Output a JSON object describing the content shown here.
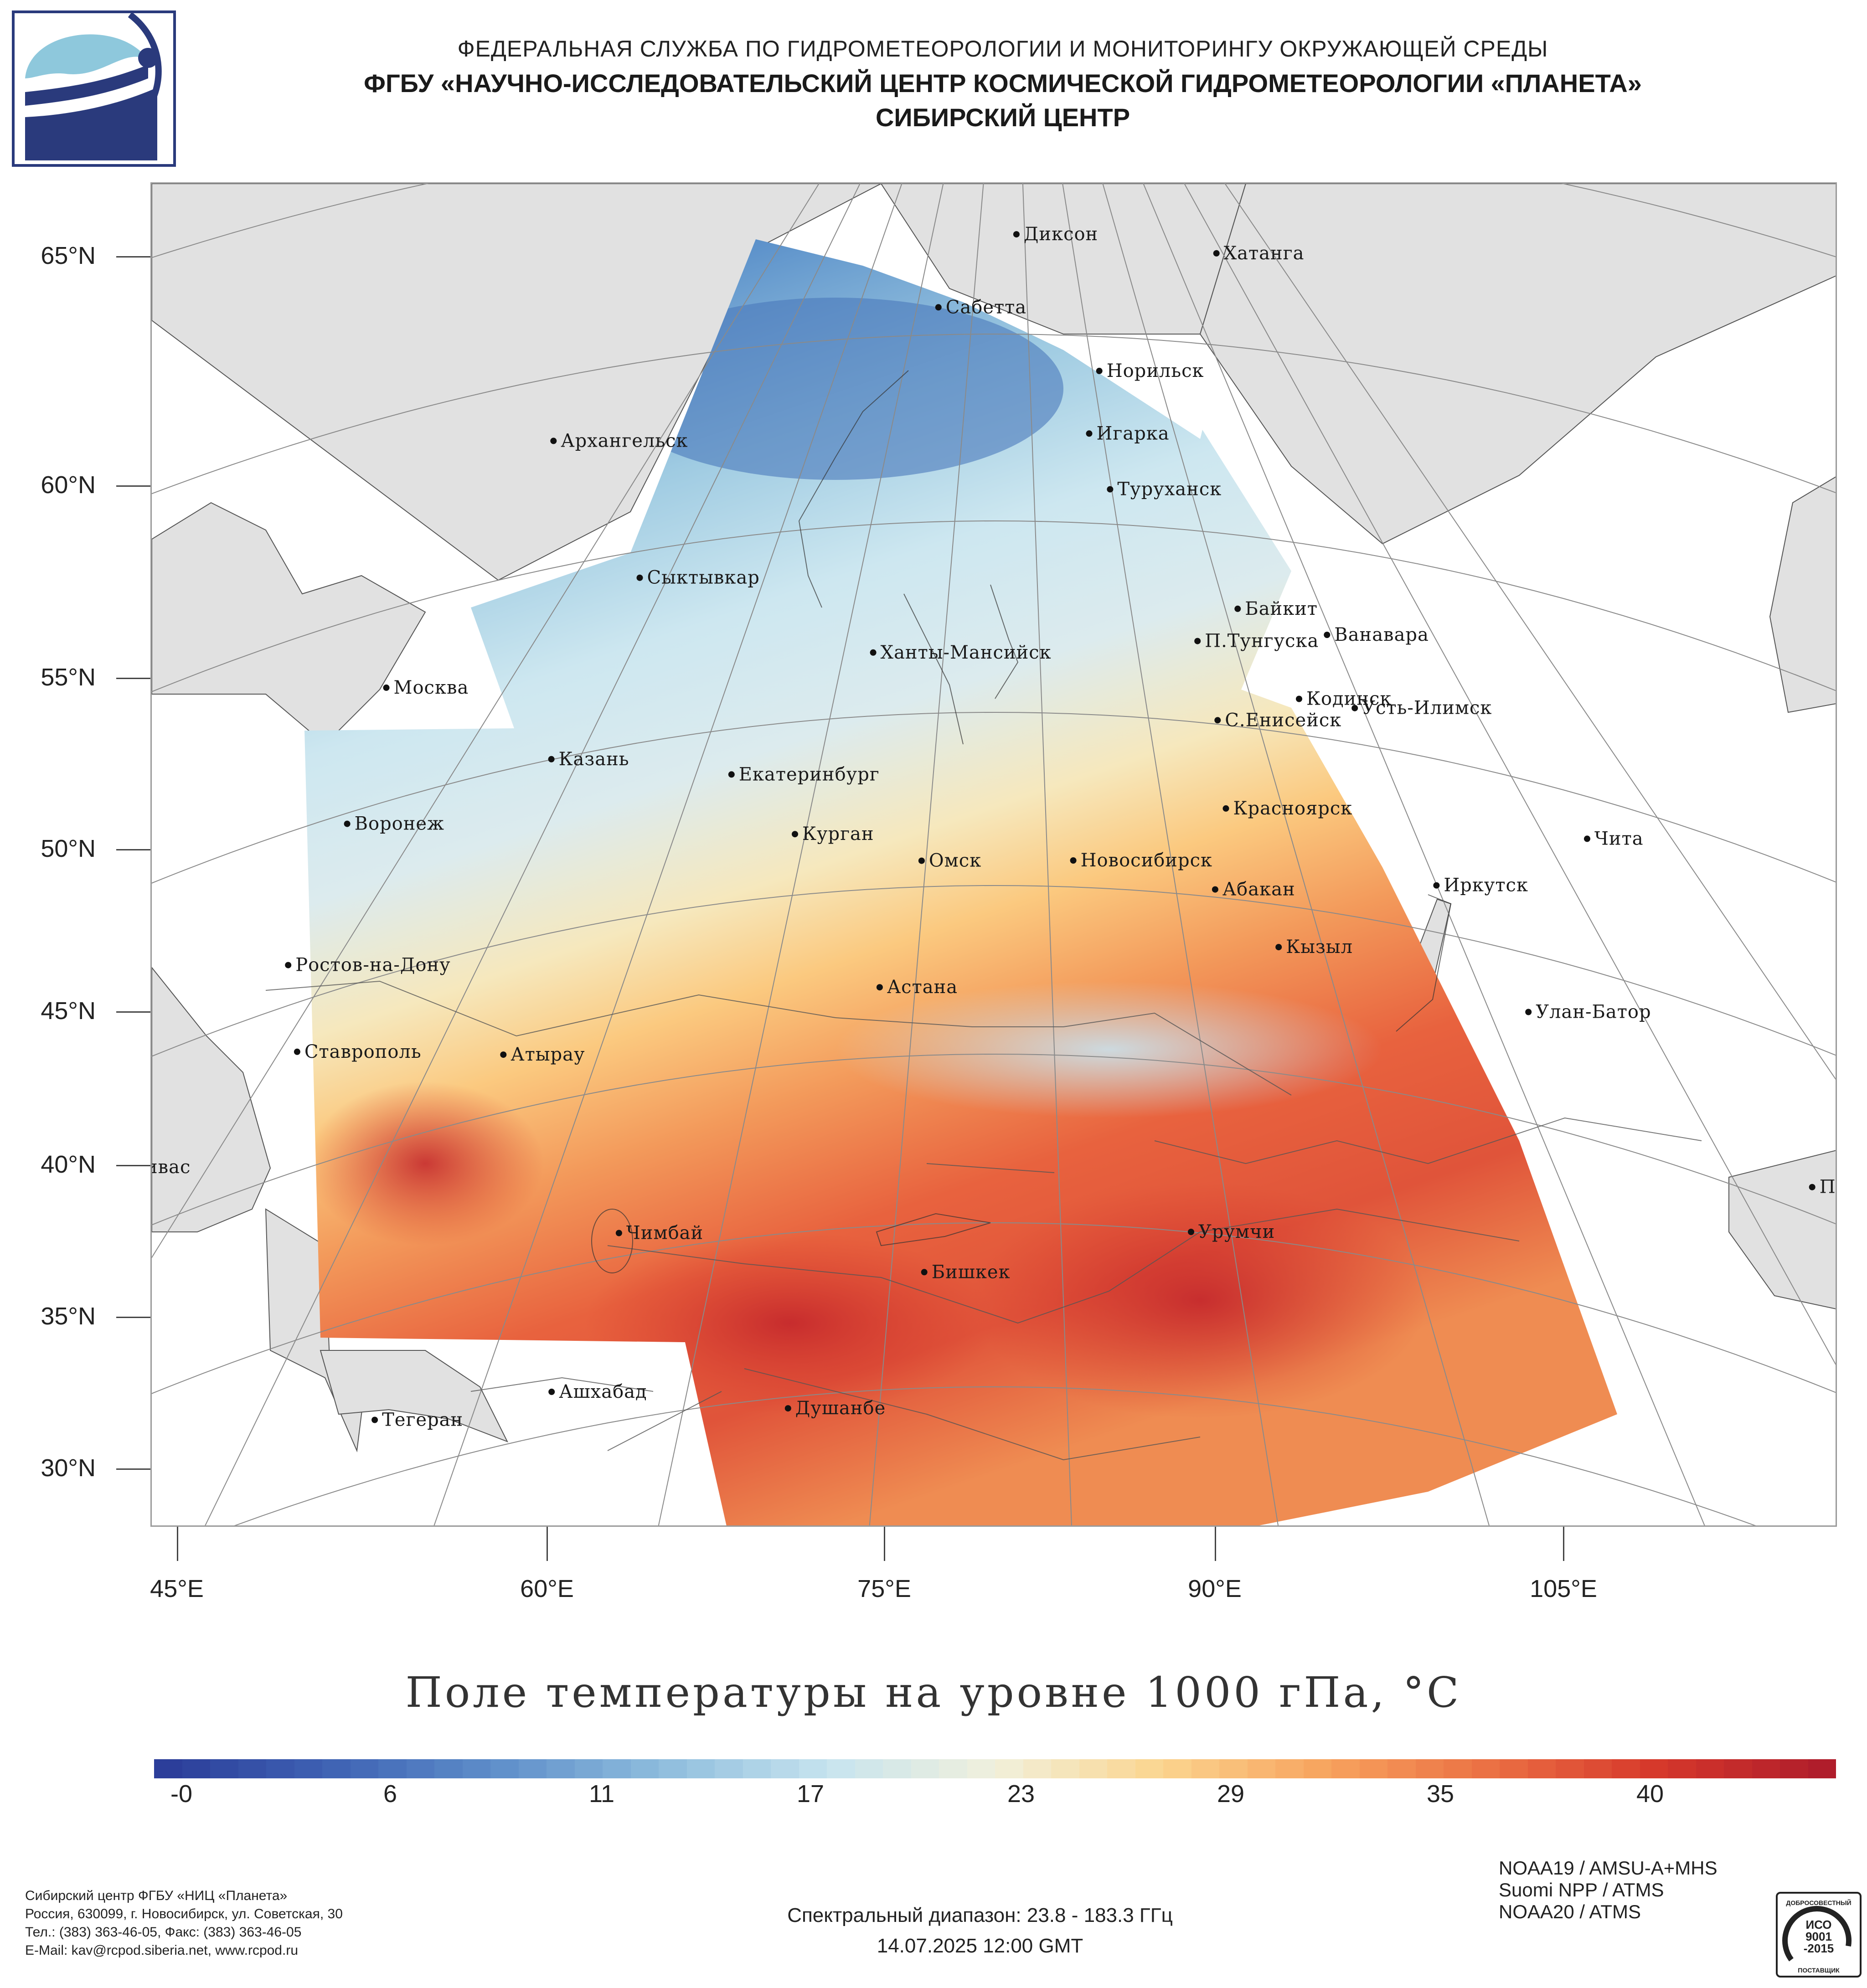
{
  "header": {
    "line1": "ФЕДЕРАЛЬНАЯ СЛУЖБА ПО ГИДРОМЕТЕОРОЛОГИИ И МОНИТОРИНГУ ОКРУЖАЮЩЕЙ СРЕДЫ",
    "line2": "ФГБУ «НАУЧНО-ИССЛЕДОВАТЕЛЬСКИЙ ЦЕНТР КОСМИЧЕСКОЙ ГИДРОМЕТЕОРОЛОГИИ «ПЛАНЕТА»",
    "line3": "СИБИРСКИЙ ЦЕНТР"
  },
  "map": {
    "lat_labels": [
      "65°N",
      "60°N",
      "55°N",
      "50°N",
      "45°N",
      "40°N",
      "35°N",
      "30°N"
    ],
    "lon_labels": [
      "45°E",
      "60°E",
      "75°E",
      "90°E",
      "105°E"
    ],
    "land_color": "#e1e1e1",
    "cities": [
      {
        "name": "Диксон",
        "lon": 80.5,
        "lat": 73.5
      },
      {
        "name": "Хатанга",
        "lon": 102.5,
        "lat": 72.0
      },
      {
        "name": "Сабетта",
        "lon": 72.0,
        "lat": 71.3
      },
      {
        "name": "Норильск",
        "lon": 88.2,
        "lat": 69.3
      },
      {
        "name": "Архангельск",
        "lon": 40.5,
        "lat": 64.5
      },
      {
        "name": "Игарка",
        "lon": 86.6,
        "lat": 67.5
      },
      {
        "name": "Туруханск",
        "lon": 87.9,
        "lat": 65.8
      },
      {
        "name": "Сыктывкар",
        "lon": 50.8,
        "lat": 61.7
      },
      {
        "name": "Байкит",
        "lon": 96.4,
        "lat": 61.7
      },
      {
        "name": "П.Тунгуска",
        "lon": 93.0,
        "lat": 61.0
      },
      {
        "name": "Ванавара",
        "lon": 102.3,
        "lat": 60.3
      },
      {
        "name": "Москва",
        "lon": 37.6,
        "lat": 55.8
      },
      {
        "name": "Ханты-Мансийск",
        "lon": 69.0,
        "lat": 61.0
      },
      {
        "name": "С.Енисейск",
        "lon": 93.4,
        "lat": 58.6
      },
      {
        "name": "Кодинск",
        "lon": 99.2,
        "lat": 58.7
      },
      {
        "name": "Усть-Илимск",
        "lon": 102.7,
        "lat": 58.0
      },
      {
        "name": "Казань",
        "lon": 49.1,
        "lat": 55.8
      },
      {
        "name": "Екатеринбург",
        "lon": 60.6,
        "lat": 56.8
      },
      {
        "name": "Воронеж",
        "lon": 39.2,
        "lat": 51.7
      },
      {
        "name": "Красноярск",
        "lon": 92.9,
        "lat": 56.0
      },
      {
        "name": "Курган",
        "lon": 65.3,
        "lat": 55.4
      },
      {
        "name": "Омск",
        "lon": 73.4,
        "lat": 55.0
      },
      {
        "name": "Новосибирск",
        "lon": 82.9,
        "lat": 55.0
      },
      {
        "name": "Чита",
        "lon": 113.5,
        "lat": 52.0
      },
      {
        "name": "Иркутск",
        "lon": 104.3,
        "lat": 52.3
      },
      {
        "name": "Ростов-на-Дону",
        "lon": 39.7,
        "lat": 47.2
      },
      {
        "name": "Абакан",
        "lon": 91.4,
        "lat": 53.7
      },
      {
        "name": "Кызыл",
        "lon": 94.5,
        "lat": 51.7
      },
      {
        "name": "Ставрополь",
        "lon": 42.0,
        "lat": 45.0
      },
      {
        "name": "Атырау",
        "lon": 51.9,
        "lat": 47.1
      },
      {
        "name": "Астана",
        "lon": 71.4,
        "lat": 51.2
      },
      {
        "name": "Улан-Батор",
        "lon": 106.9,
        "lat": 47.9
      },
      {
        "name": "Сивас",
        "lon": 37.0,
        "lat": 39.7
      },
      {
        "name": "Пекин",
        "lon": 116.4,
        "lat": 39.9
      },
      {
        "name": "Чимбай",
        "lon": 59.8,
        "lat": 42.9
      },
      {
        "name": "Урумчи",
        "lon": 87.6,
        "lat": 43.8
      },
      {
        "name": "Бишкек",
        "lon": 74.6,
        "lat": 42.9
      },
      {
        "name": "Тегеран",
        "lon": 51.4,
        "lat": 35.7
      },
      {
        "name": "Ашхабад",
        "lon": 58.4,
        "lat": 37.9
      },
      {
        "name": "Душанбе",
        "lon": 68.8,
        "lat": 38.6
      }
    ]
  },
  "title": "Поле температуры на уровне 1000 гПа, °C",
  "colorbar": {
    "labels": [
      "-0",
      "6",
      "11",
      "17",
      "23",
      "29",
      "35",
      "40"
    ],
    "colors": [
      "#2c3e9a",
      "#3f63b4",
      "#5f8fca",
      "#8fbddd",
      "#c7e4ef",
      "#f1f0dc",
      "#fbd58f",
      "#f7a35e",
      "#eb6f43",
      "#d6382b",
      "#b01d2b"
    ]
  },
  "footer": {
    "org_lines": [
      "Сибирский центр ФГБУ «НИЦ «Планета»",
      "Россия, 630099, г. Новосибирск, ул. Советская, 30",
      "Тел.: (383) 363-46-05, Факс: (383) 363-46-05",
      "E-Mail: kav@rcpod.siberia.net, www.rcpod.ru"
    ],
    "satellites": [
      "NOAA19 / AMSU-A+MHS",
      "Suomi NPP / ATMS",
      "NOAA20 / ATMS"
    ],
    "spectral_range": "Спектральный диапазон: 23.8 - 183.3 ГГц",
    "datetime": "14.07.2025 12:00 GMT",
    "cert": {
      "top": "ДОБРОСОВЕСТНЫЙ",
      "mid1": "ИСО",
      "mid2": "9001",
      "mid3": "-2015",
      "bottom": "ПОСТАВЩИК"
    }
  }
}
